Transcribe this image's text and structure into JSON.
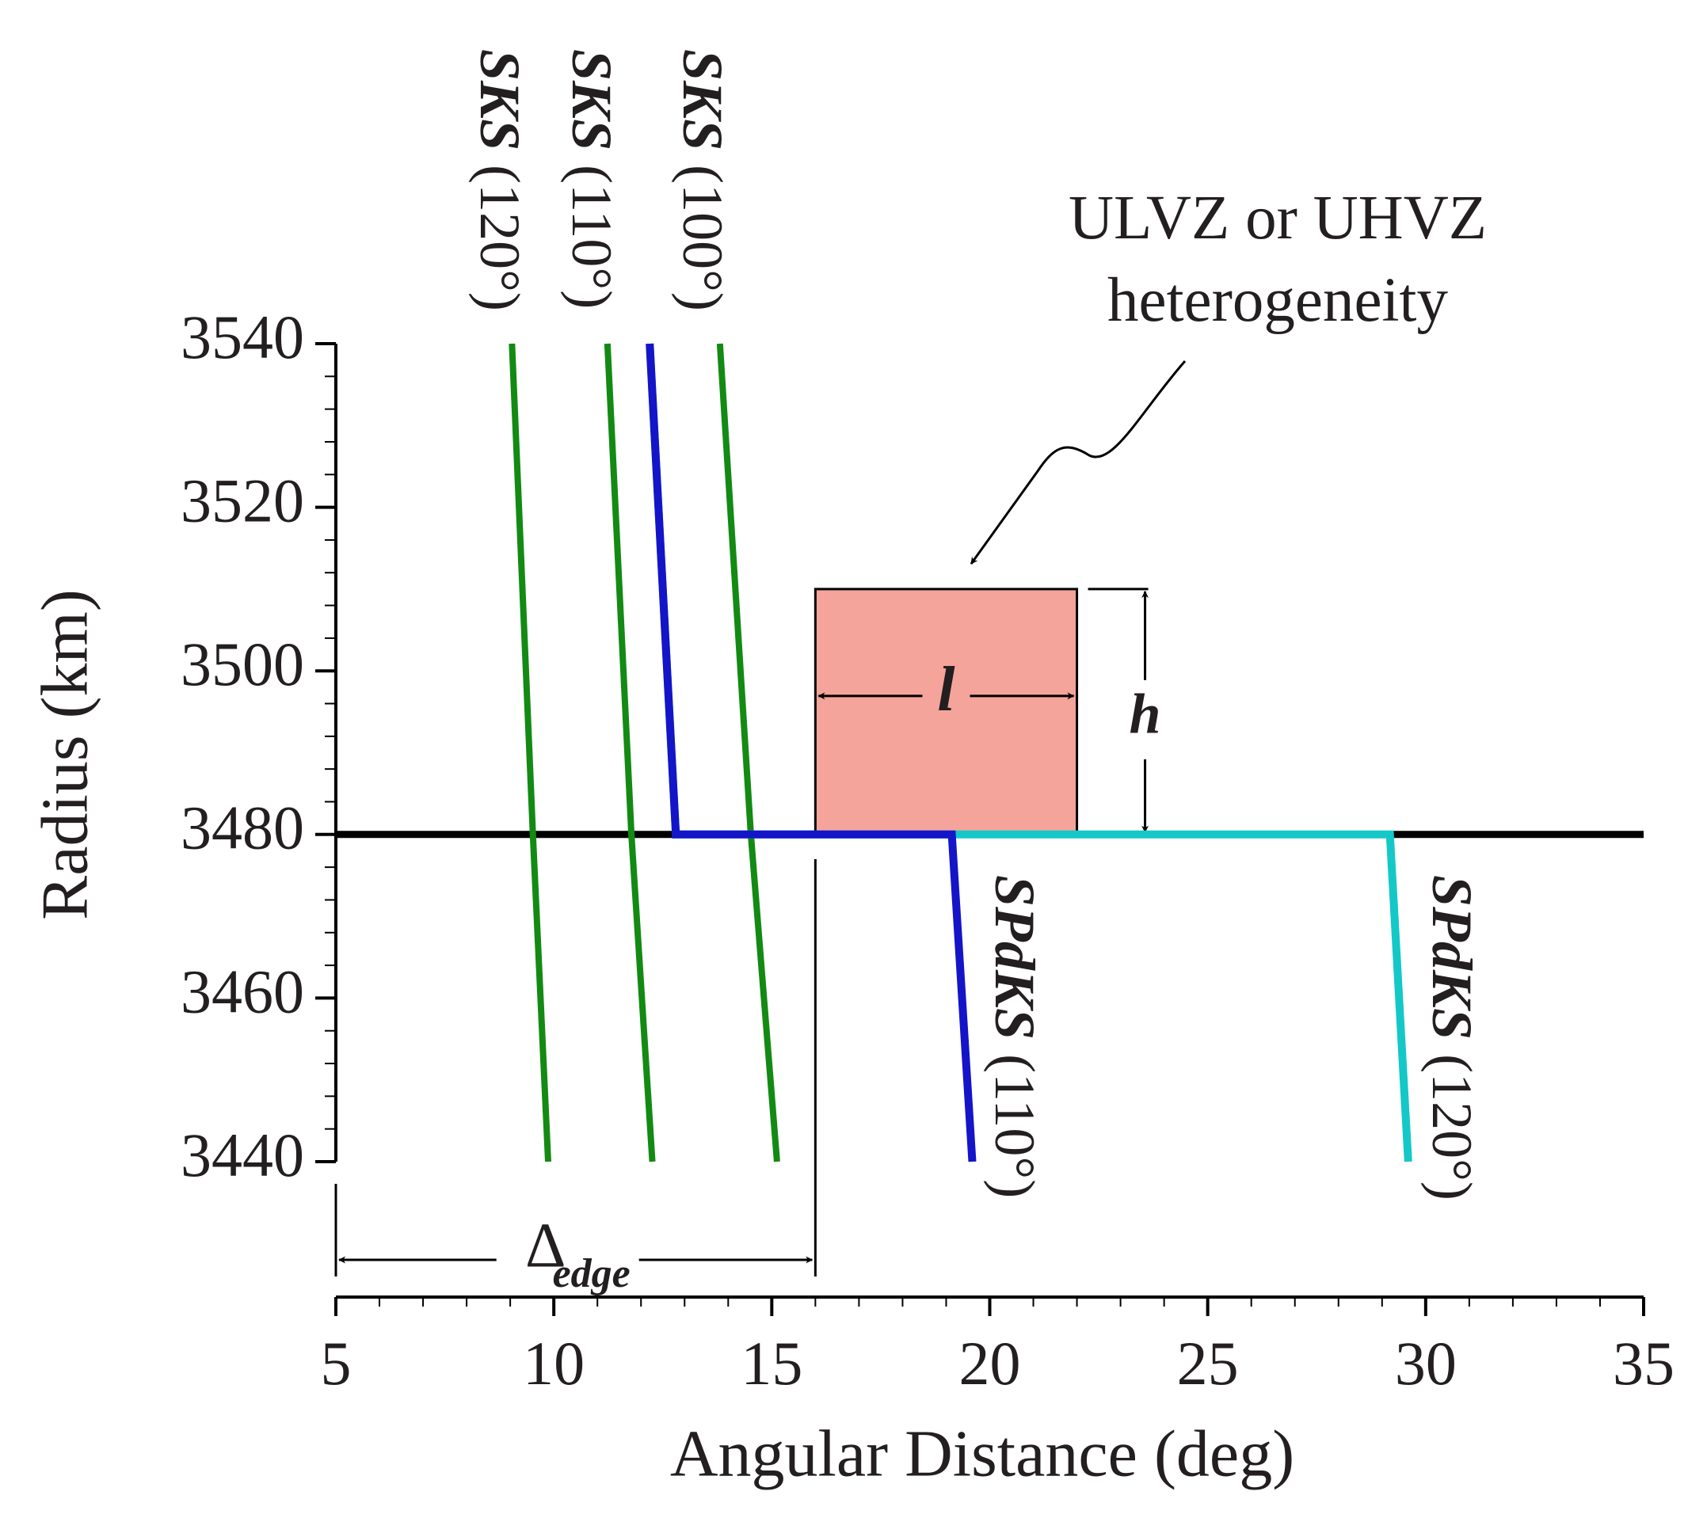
{
  "chart_data": {
    "type": "line",
    "xlabel": "Angular Distance (deg)",
    "ylabel": "Radius (km)",
    "xlim": [
      5,
      35
    ],
    "xticks": [
      5,
      10,
      15,
      20,
      25,
      30,
      35
    ],
    "xminor_step": 1,
    "ylim": [
      3440,
      3540
    ],
    "yticks": [
      3440,
      3460,
      3480,
      3500,
      3520,
      3540
    ],
    "yminor_step": 4,
    "boundary": 3480,
    "series": [
      {
        "name": "SKS (120°)",
        "color": "#138a13",
        "x": [
          9.04,
          9.52,
          9.87
        ],
        "y": [
          3540,
          3480,
          3440
        ]
      },
      {
        "name": "SKS (110°)",
        "color": "#138a13",
        "x": [
          11.23,
          11.78,
          12.26
        ],
        "y": [
          3540,
          3480,
          3440
        ]
      },
      {
        "name": "SKS (100°)",
        "color": "#138a13",
        "x": [
          13.81,
          14.52,
          15.12
        ],
        "y": [
          3540,
          3480,
          3440
        ]
      },
      {
        "name": "SPdKS (120°)",
        "color": "#14c8c8",
        "x": [
          12.2,
          12.8,
          29.18,
          29.6
        ],
        "y": [
          3540,
          3480,
          3480,
          3440
        ]
      },
      {
        "name": "SPdKS (110°)",
        "color": "#1414c8",
        "x": [
          12.2,
          12.8,
          19.13,
          19.6
        ],
        "y": [
          3540,
          3480,
          3480,
          3440
        ]
      }
    ],
    "box": {
      "x": [
        16,
        22
      ],
      "y": [
        3480,
        3510
      ],
      "color": "#f4a49a",
      "width_label": "l",
      "height_label": "h"
    },
    "annotation": [
      "ULVZ or UHVZ",
      "heterogeneity"
    ],
    "delta": {
      "x": [
        5,
        16
      ],
      "label": "Δ",
      "subscript": "edge"
    }
  }
}
